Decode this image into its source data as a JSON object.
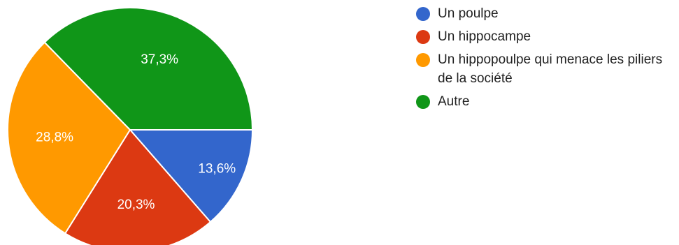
{
  "chart_data": {
    "type": "pie",
    "title": "",
    "categories": [
      "Un poulpe",
      "Un hippocampe",
      "Un hippopoulpe qui menace les piliers de la société",
      "Autre"
    ],
    "values": [
      13.6,
      20.3,
      28.8,
      37.3
    ],
    "labels": [
      "13,6%",
      "20,3%",
      "28,8%",
      "37,3%"
    ],
    "colors": [
      "#3366cc",
      "#dc3912",
      "#ff9900",
      "#109618"
    ],
    "legend_position": "right"
  },
  "legend": {
    "items": [
      {
        "label": "Un poulpe",
        "color": "#3366cc"
      },
      {
        "label": "Un hippocampe",
        "color": "#dc3912"
      },
      {
        "label": "Un hippopoulpe qui menace les piliers de la société",
        "color": "#ff9900"
      },
      {
        "label": "Autre",
        "color": "#109618"
      }
    ]
  }
}
